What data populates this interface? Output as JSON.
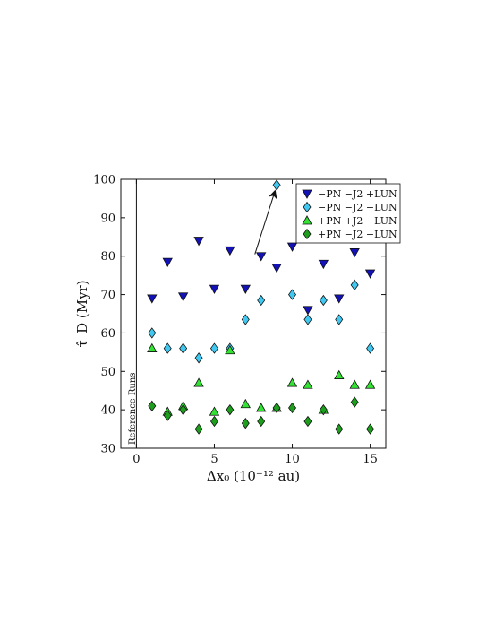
{
  "chart_data": {
    "type": "scatter",
    "xlabel": "Δx₀ (10⁻¹² au)",
    "ylabel": "τ̂_D (Myr)",
    "xlim": [
      -1,
      16
    ],
    "ylim": [
      30,
      100
    ],
    "xticks": [
      0,
      5,
      10,
      15
    ],
    "yticks": [
      30,
      40,
      50,
      60,
      70,
      80,
      90,
      100
    ],
    "grid": false,
    "legend_position": "top-right",
    "reference_line_x": 0,
    "reference_label": "Reference Runs",
    "annotation": {
      "type": "arrow",
      "target": [
        9,
        98.5
      ],
      "from": [
        7.6,
        80.5
      ]
    },
    "series": [
      {
        "name": "−PN −J2 +LUN",
        "marker": "triangle-down",
        "color": "#1212b8",
        "x": [
          1,
          2,
          3,
          4,
          5,
          6,
          7,
          8,
          9,
          10,
          11,
          12,
          13,
          14,
          15
        ],
        "y": [
          69,
          78.5,
          69.5,
          84,
          71.5,
          81.5,
          71.5,
          80,
          77,
          82.5,
          66,
          78,
          69,
          81,
          75.5
        ]
      },
      {
        "name": "−PN −J2 −LUN",
        "marker": "diamond",
        "color": "#40c8f0",
        "x": [
          1,
          2,
          3,
          4,
          5,
          6,
          7,
          8,
          9,
          10,
          11,
          12,
          13,
          14,
          15
        ],
        "y": [
          60,
          56,
          56,
          53.5,
          56,
          56,
          63.5,
          68.5,
          98.5,
          70,
          63.5,
          68.5,
          63.5,
          72.5,
          56
        ]
      },
      {
        "name": "+PN +J2 −LUN",
        "marker": "triangle-up",
        "color": "#33e333",
        "x": [
          1,
          2,
          3,
          4,
          5,
          6,
          7,
          8,
          9,
          10,
          11,
          12,
          13,
          14,
          15
        ],
        "y": [
          56,
          39.5,
          41,
          47,
          39.5,
          55.5,
          41.5,
          40.5,
          40.5,
          47,
          46.5,
          40,
          49,
          46.5,
          46.5
        ]
      },
      {
        "name": "+PN −J2 −LUN",
        "marker": "diamond",
        "color": "#1d9e1d",
        "x": [
          1,
          2,
          3,
          4,
          5,
          6,
          7,
          8,
          9,
          10,
          11,
          12,
          13,
          14,
          15
        ],
        "y": [
          41,
          38.5,
          40,
          35,
          37,
          40,
          36.5,
          37,
          40.5,
          40.5,
          37,
          40,
          35,
          42,
          35
        ]
      }
    ]
  }
}
